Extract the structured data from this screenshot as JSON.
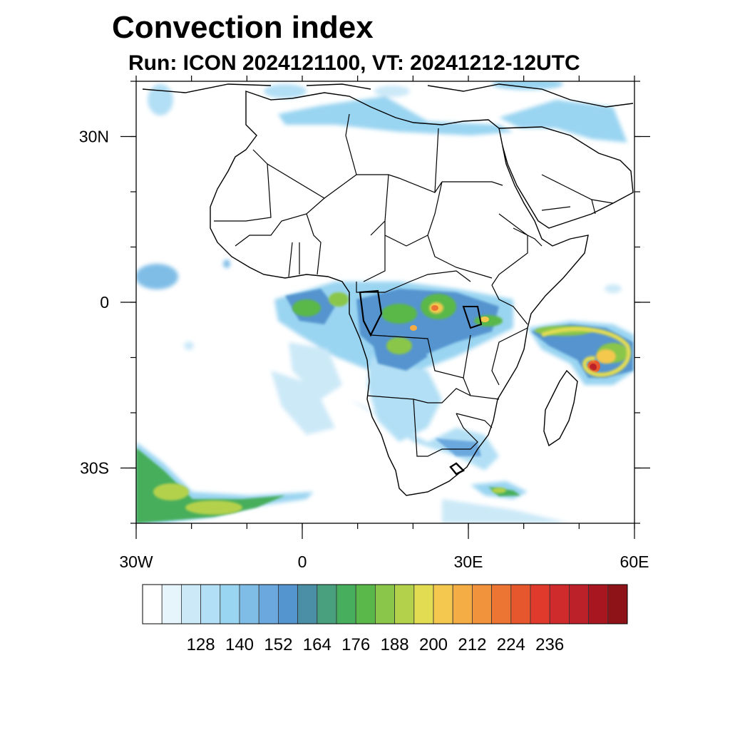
{
  "title": "Convection index",
  "subtitle": "Run: ICON 2024121100,  VT: 20241212-12UTC",
  "map": {
    "lon_range": [
      -30,
      60
    ],
    "lat_range": [
      -40,
      40
    ],
    "lon_ticks": [
      {
        "value": -30,
        "label": "30W"
      },
      {
        "value": 0,
        "label": "0"
      },
      {
        "value": 30,
        "label": "30E"
      },
      {
        "value": 60,
        "label": "60E"
      }
    ],
    "lat_ticks": [
      {
        "value": 30,
        "label": "30N"
      },
      {
        "value": 0,
        "label": "0"
      },
      {
        "value": -30,
        "label": "30S"
      }
    ],
    "minor_lon_step": 10,
    "minor_lat_step": 10,
    "coastline_color": "#000000"
  },
  "colorbar": {
    "colors": [
      "#ffffff",
      "#e6f4fc",
      "#cce9f8",
      "#b2dff5",
      "#99d4f1",
      "#7fbde7",
      "#6aa8de",
      "#5494cf",
      "#4a8fa6",
      "#48a07f",
      "#46ae5c",
      "#5ab84a",
      "#8ac64a",
      "#b4d14c",
      "#e2dc52",
      "#f4c84e",
      "#f4ad45",
      "#f1923c",
      "#ec7533",
      "#e6572d",
      "#df3a2c",
      "#cf2a2c",
      "#bc2028",
      "#a8171f",
      "#8e1318"
    ],
    "labels": [
      "128",
      "140",
      "152",
      "164",
      "176",
      "188",
      "200",
      "212",
      "224",
      "236"
    ]
  }
}
